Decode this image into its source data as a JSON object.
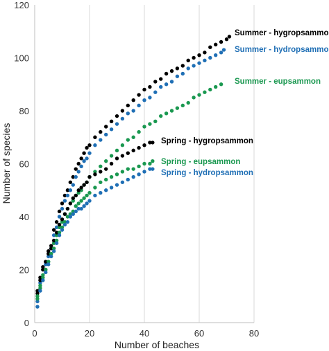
{
  "chart_data": {
    "type": "scatter",
    "title": "",
    "xlabel": "Number of beaches",
    "ylabel": "Number of species",
    "xlim": [
      0,
      80
    ],
    "ylim": [
      0,
      120
    ],
    "x_ticks": [
      "0",
      "20",
      "40",
      "60",
      "80"
    ],
    "y_ticks": [
      "0",
      "20",
      "40",
      "60",
      "80",
      "100",
      "120"
    ],
    "grid": "vertical",
    "series": [
      {
        "name": "Summer - hygropsammon",
        "color": "#000000",
        "points": [
          [
            1,
            11
          ],
          [
            2,
            17
          ],
          [
            3,
            21
          ],
          [
            4,
            23
          ],
          [
            5,
            27
          ],
          [
            6,
            29
          ],
          [
            7,
            35
          ],
          [
            8,
            38
          ],
          [
            9,
            42
          ],
          [
            10,
            45
          ],
          [
            11,
            48
          ],
          [
            12,
            50
          ],
          [
            13,
            53
          ],
          [
            14,
            55
          ],
          [
            15,
            58
          ],
          [
            16,
            60
          ],
          [
            17,
            62
          ],
          [
            18,
            64
          ],
          [
            19,
            66
          ],
          [
            20,
            67
          ],
          [
            22,
            70
          ],
          [
            24,
            72
          ],
          [
            26,
            74
          ],
          [
            28,
            76
          ],
          [
            30,
            78
          ],
          [
            32,
            80
          ],
          [
            34,
            82
          ],
          [
            36,
            84
          ],
          [
            38,
            86
          ],
          [
            40,
            88
          ],
          [
            42,
            89
          ],
          [
            44,
            91
          ],
          [
            46,
            92
          ],
          [
            48,
            94
          ],
          [
            50,
            95
          ],
          [
            52,
            96
          ],
          [
            54,
            97
          ],
          [
            56,
            99
          ],
          [
            58,
            100
          ],
          [
            60,
            101
          ],
          [
            62,
            102
          ],
          [
            64,
            104
          ],
          [
            66,
            105
          ],
          [
            68,
            106
          ],
          [
            70,
            107
          ],
          [
            71,
            108
          ]
        ]
      },
      {
        "name": "Summer - hydropsammon",
        "color": "#1f6fb5",
        "points": [
          [
            1,
            8
          ],
          [
            2,
            15
          ],
          [
            3,
            20
          ],
          [
            4,
            22
          ],
          [
            5,
            25
          ],
          [
            6,
            28
          ],
          [
            7,
            33
          ],
          [
            8,
            36
          ],
          [
            9,
            40
          ],
          [
            10,
            43
          ],
          [
            11,
            46
          ],
          [
            12,
            48
          ],
          [
            13,
            50
          ],
          [
            14,
            52
          ],
          [
            15,
            55
          ],
          [
            16,
            57
          ],
          [
            17,
            59
          ],
          [
            18,
            61
          ],
          [
            19,
            62
          ],
          [
            20,
            64
          ],
          [
            22,
            67
          ],
          [
            24,
            69
          ],
          [
            26,
            71
          ],
          [
            28,
            73
          ],
          [
            30,
            75
          ],
          [
            32,
            77
          ],
          [
            34,
            79
          ],
          [
            36,
            80
          ],
          [
            38,
            82
          ],
          [
            40,
            84
          ],
          [
            42,
            85
          ],
          [
            44,
            87
          ],
          [
            46,
            89
          ],
          [
            48,
            90
          ],
          [
            50,
            91
          ],
          [
            52,
            93
          ],
          [
            54,
            94
          ],
          [
            56,
            96
          ],
          [
            58,
            97
          ],
          [
            60,
            98
          ],
          [
            62,
            99
          ],
          [
            64,
            100
          ],
          [
            66,
            101
          ],
          [
            68,
            102
          ],
          [
            69,
            103
          ]
        ]
      },
      {
        "name": "Summer - eupsammon",
        "color": "#1a9850",
        "points": [
          [
            1,
            10
          ],
          [
            2,
            14
          ],
          [
            3,
            18
          ],
          [
            4,
            20
          ],
          [
            5,
            23
          ],
          [
            6,
            26
          ],
          [
            7,
            30
          ],
          [
            8,
            33
          ],
          [
            9,
            36
          ],
          [
            10,
            38
          ],
          [
            11,
            41
          ],
          [
            12,
            43
          ],
          [
            13,
            45
          ],
          [
            14,
            46
          ],
          [
            15,
            48
          ],
          [
            16,
            49
          ],
          [
            17,
            50
          ],
          [
            18,
            52
          ],
          [
            19,
            53
          ],
          [
            20,
            55
          ],
          [
            22,
            57
          ],
          [
            24,
            59
          ],
          [
            26,
            61
          ],
          [
            28,
            63
          ],
          [
            30,
            65
          ],
          [
            32,
            67
          ],
          [
            34,
            69
          ],
          [
            36,
            70
          ],
          [
            38,
            72
          ],
          [
            40,
            74
          ],
          [
            42,
            75
          ],
          [
            44,
            76
          ],
          [
            46,
            78
          ],
          [
            48,
            79
          ],
          [
            50,
            80
          ],
          [
            52,
            81
          ],
          [
            54,
            82
          ],
          [
            56,
            83
          ],
          [
            58,
            85
          ],
          [
            60,
            86
          ],
          [
            62,
            87
          ],
          [
            64,
            88
          ],
          [
            66,
            89
          ],
          [
            68,
            90
          ]
        ]
      },
      {
        "name": "Spring - hygropsammon",
        "color": "#000000",
        "points": [
          [
            1,
            12
          ],
          [
            2,
            16
          ],
          [
            3,
            20
          ],
          [
            4,
            23
          ],
          [
            5,
            26
          ],
          [
            6,
            28
          ],
          [
            7,
            31
          ],
          [
            8,
            34
          ],
          [
            9,
            37
          ],
          [
            10,
            39
          ],
          [
            11,
            41
          ],
          [
            12,
            43
          ],
          [
            13,
            45
          ],
          [
            14,
            47
          ],
          [
            15,
            48
          ],
          [
            16,
            50
          ],
          [
            17,
            51
          ],
          [
            18,
            52
          ],
          [
            19,
            53
          ],
          [
            20,
            55
          ],
          [
            22,
            56
          ],
          [
            24,
            57
          ],
          [
            26,
            58
          ],
          [
            28,
            60
          ],
          [
            30,
            62
          ],
          [
            32,
            63
          ],
          [
            34,
            64
          ],
          [
            36,
            65
          ],
          [
            38,
            66
          ],
          [
            40,
            67
          ],
          [
            42,
            68
          ],
          [
            43,
            68
          ]
        ]
      },
      {
        "name": "Spring - eupsammon",
        "color": "#1a9850",
        "points": [
          [
            1,
            9
          ],
          [
            2,
            13
          ],
          [
            3,
            17
          ],
          [
            4,
            20
          ],
          [
            5,
            23
          ],
          [
            6,
            26
          ],
          [
            7,
            28
          ],
          [
            8,
            31
          ],
          [
            9,
            34
          ],
          [
            10,
            36
          ],
          [
            11,
            38
          ],
          [
            12,
            40
          ],
          [
            13,
            41
          ],
          [
            14,
            42
          ],
          [
            15,
            44
          ],
          [
            16,
            45
          ],
          [
            17,
            46
          ],
          [
            18,
            47
          ],
          [
            19,
            48
          ],
          [
            20,
            49
          ],
          [
            22,
            51
          ],
          [
            24,
            53
          ],
          [
            26,
            54
          ],
          [
            28,
            55
          ],
          [
            30,
            56
          ],
          [
            32,
            57
          ],
          [
            34,
            58
          ],
          [
            36,
            58
          ],
          [
            38,
            59
          ],
          [
            40,
            60
          ],
          [
            42,
            60
          ],
          [
            43,
            61
          ]
        ]
      },
      {
        "name": "Spring - hydropsammon",
        "color": "#1f6fb5",
        "points": [
          [
            1,
            6
          ],
          [
            2,
            12
          ],
          [
            3,
            16
          ],
          [
            4,
            19
          ],
          [
            5,
            22
          ],
          [
            6,
            25
          ],
          [
            7,
            27
          ],
          [
            8,
            30
          ],
          [
            9,
            33
          ],
          [
            10,
            35
          ],
          [
            11,
            37
          ],
          [
            12,
            38
          ],
          [
            13,
            40
          ],
          [
            14,
            41
          ],
          [
            15,
            42
          ],
          [
            16,
            43
          ],
          [
            17,
            43
          ],
          [
            18,
            44
          ],
          [
            19,
            45
          ],
          [
            20,
            46
          ],
          [
            22,
            48
          ],
          [
            24,
            49
          ],
          [
            26,
            50
          ],
          [
            28,
            51
          ],
          [
            30,
            52
          ],
          [
            32,
            53
          ],
          [
            34,
            54
          ],
          [
            36,
            55
          ],
          [
            38,
            56
          ],
          [
            40,
            57
          ],
          [
            42,
            58
          ],
          [
            43,
            58
          ]
        ]
      }
    ]
  }
}
